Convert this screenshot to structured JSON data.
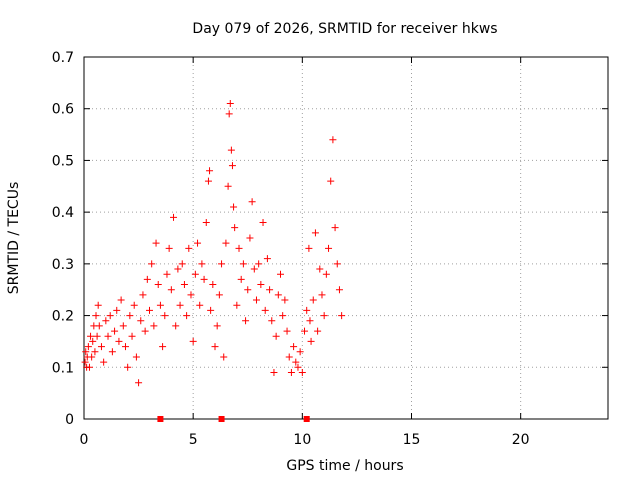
{
  "chart_data": {
    "type": "scatter",
    "title": "Day 079 of 2026, SRMTID for receiver hkws",
    "xlabel": "GPS time / hours",
    "ylabel": "SRMTID / TECUs",
    "xlim": [
      0,
      24
    ],
    "ylim": [
      0,
      0.7
    ],
    "xticks": [
      0,
      5,
      10,
      15,
      20
    ],
    "yticks": [
      0,
      0.1,
      0.2,
      0.3,
      0.4,
      0.5,
      0.6,
      0.7
    ],
    "grid": true,
    "marker": "+",
    "series_color": "#ff0000",
    "series": [
      {
        "name": "SRMTID",
        "points": [
          [
            0.05,
            0.11
          ],
          [
            0.08,
            0.13
          ],
          [
            0.12,
            0.1
          ],
          [
            0.15,
            0.12
          ],
          [
            0.2,
            0.14
          ],
          [
            0.25,
            0.1
          ],
          [
            0.3,
            0.16
          ],
          [
            0.35,
            0.12
          ],
          [
            0.4,
            0.15
          ],
          [
            0.45,
            0.18
          ],
          [
            0.5,
            0.13
          ],
          [
            0.55,
            0.2
          ],
          [
            0.6,
            0.16
          ],
          [
            0.65,
            0.22
          ],
          [
            0.7,
            0.18
          ],
          [
            0.8,
            0.14
          ],
          [
            0.9,
            0.11
          ],
          [
            1.0,
            0.19
          ],
          [
            1.1,
            0.16
          ],
          [
            1.2,
            0.2
          ],
          [
            1.3,
            0.13
          ],
          [
            1.4,
            0.17
          ],
          [
            1.5,
            0.21
          ],
          [
            1.6,
            0.15
          ],
          [
            1.7,
            0.23
          ],
          [
            1.8,
            0.18
          ],
          [
            1.9,
            0.14
          ],
          [
            2.0,
            0.1
          ],
          [
            2.1,
            0.2
          ],
          [
            2.2,
            0.16
          ],
          [
            2.3,
            0.22
          ],
          [
            2.4,
            0.12
          ],
          [
            2.5,
            0.07
          ],
          [
            2.6,
            0.19
          ],
          [
            2.7,
            0.24
          ],
          [
            2.8,
            0.17
          ],
          [
            2.9,
            0.27
          ],
          [
            3.0,
            0.21
          ],
          [
            3.1,
            0.3
          ],
          [
            3.2,
            0.18
          ],
          [
            3.3,
            0.34
          ],
          [
            3.4,
            0.26
          ],
          [
            3.5,
            0.22
          ],
          [
            3.6,
            0.14
          ],
          [
            3.7,
            0.2
          ],
          [
            3.8,
            0.28
          ],
          [
            3.9,
            0.33
          ],
          [
            4.0,
            0.25
          ],
          [
            4.1,
            0.39
          ],
          [
            4.2,
            0.18
          ],
          [
            4.3,
            0.29
          ],
          [
            4.4,
            0.22
          ],
          [
            4.5,
            0.3
          ],
          [
            4.6,
            0.26
          ],
          [
            4.7,
            0.2
          ],
          [
            4.8,
            0.33
          ],
          [
            4.9,
            0.24
          ],
          [
            5.0,
            0.15
          ],
          [
            5.1,
            0.28
          ],
          [
            5.2,
            0.34
          ],
          [
            5.3,
            0.22
          ],
          [
            5.4,
            0.3
          ],
          [
            5.5,
            0.27
          ],
          [
            5.6,
            0.38
          ],
          [
            5.7,
            0.46
          ],
          [
            5.75,
            0.48
          ],
          [
            5.8,
            0.21
          ],
          [
            5.9,
            0.26
          ],
          [
            6.0,
            0.14
          ],
          [
            6.1,
            0.18
          ],
          [
            6.2,
            0.24
          ],
          [
            6.3,
            0.3
          ],
          [
            6.4,
            0.12
          ],
          [
            6.5,
            0.34
          ],
          [
            6.6,
            0.45
          ],
          [
            6.65,
            0.59
          ],
          [
            6.7,
            0.61
          ],
          [
            6.75,
            0.52
          ],
          [
            6.8,
            0.49
          ],
          [
            6.85,
            0.41
          ],
          [
            6.9,
            0.37
          ],
          [
            7.0,
            0.22
          ],
          [
            7.1,
            0.33
          ],
          [
            7.2,
            0.27
          ],
          [
            7.3,
            0.3
          ],
          [
            7.4,
            0.19
          ],
          [
            7.5,
            0.25
          ],
          [
            7.6,
            0.35
          ],
          [
            7.7,
            0.42
          ],
          [
            7.8,
            0.29
          ],
          [
            7.9,
            0.23
          ],
          [
            8.0,
            0.3
          ],
          [
            8.1,
            0.26
          ],
          [
            8.2,
            0.38
          ],
          [
            8.3,
            0.21
          ],
          [
            8.4,
            0.31
          ],
          [
            8.5,
            0.25
          ],
          [
            8.6,
            0.19
          ],
          [
            8.7,
            0.09
          ],
          [
            8.8,
            0.16
          ],
          [
            8.9,
            0.24
          ],
          [
            9.0,
            0.28
          ],
          [
            9.1,
            0.2
          ],
          [
            9.2,
            0.23
          ],
          [
            9.3,
            0.17
          ],
          [
            9.4,
            0.12
          ],
          [
            9.5,
            0.09
          ],
          [
            9.6,
            0.14
          ],
          [
            9.7,
            0.11
          ],
          [
            9.8,
            0.1
          ],
          [
            9.9,
            0.13
          ],
          [
            10.0,
            0.09
          ],
          [
            10.1,
            0.17
          ],
          [
            10.2,
            0.21
          ],
          [
            10.3,
            0.33
          ],
          [
            10.35,
            0.19
          ],
          [
            10.4,
            0.15
          ],
          [
            10.5,
            0.23
          ],
          [
            10.6,
            0.36
          ],
          [
            10.7,
            0.17
          ],
          [
            10.8,
            0.29
          ],
          [
            10.9,
            0.24
          ],
          [
            11.0,
            0.2
          ],
          [
            11.1,
            0.28
          ],
          [
            11.2,
            0.33
          ],
          [
            11.3,
            0.46
          ],
          [
            11.4,
            0.54
          ],
          [
            11.5,
            0.37
          ],
          [
            11.6,
            0.3
          ],
          [
            11.7,
            0.25
          ],
          [
            11.8,
            0.2
          ]
        ]
      }
    ],
    "gap_markers": [
      3.5,
      6.3,
      10.2
    ]
  }
}
